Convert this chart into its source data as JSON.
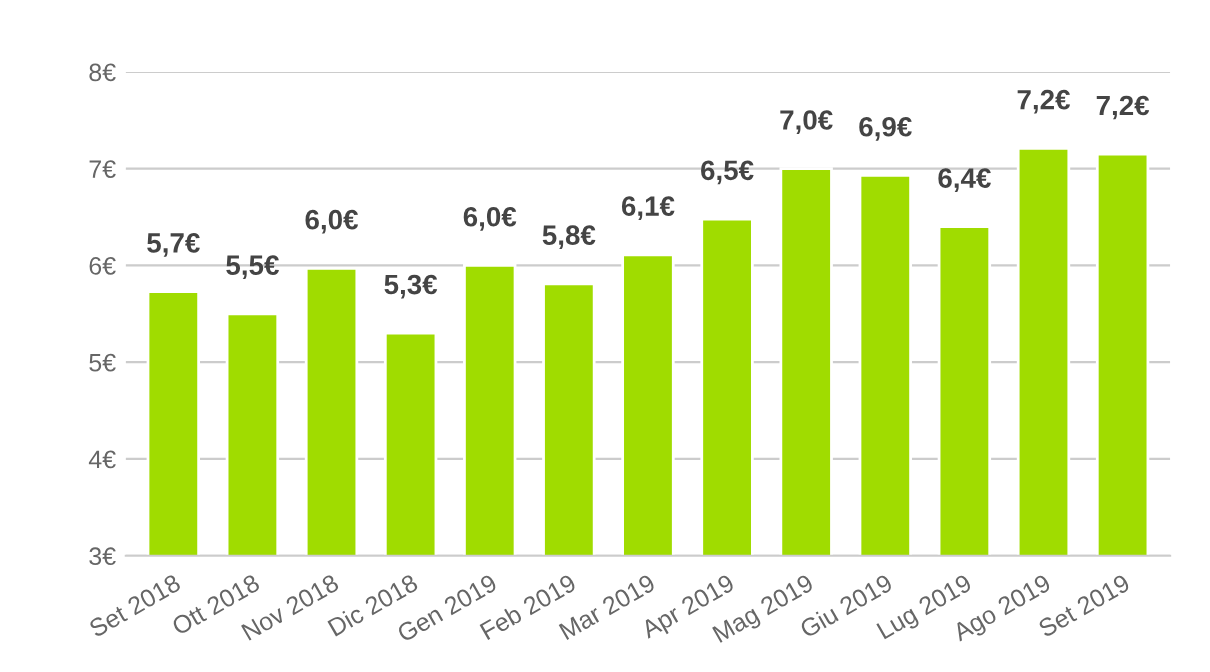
{
  "chart_data": {
    "type": "bar",
    "categories": [
      "Set 2018",
      "Ott 2018",
      "Nov 2018",
      "Dic 2018",
      "Gen 2019",
      "Feb 2019",
      "Mar 2019",
      "Apr 2019",
      "Mag 2019",
      "Giu 2019",
      "Lug 2019",
      "Ago 2019",
      "Set 2019"
    ],
    "values": [
      5.73,
      5.5,
      5.97,
      5.3,
      6.0,
      5.81,
      6.11,
      6.48,
      7.0,
      6.93,
      6.4,
      7.21,
      7.15
    ],
    "value_labels": [
      "5,7€",
      "5,5€",
      "6,0€",
      "5,3€",
      "6,0€",
      "5,8€",
      "6,1€",
      "6,5€",
      "7,0€",
      "6,9€",
      "6,4€",
      "7,2€",
      "7,2€"
    ],
    "color": "#a0dc00",
    "ylim": [
      3,
      8
    ],
    "yticks": [
      {
        "value": 3,
        "label": "3€"
      },
      {
        "value": 4,
        "label": "4€"
      },
      {
        "value": 5,
        "label": "5€"
      },
      {
        "value": 6,
        "label": "6€"
      },
      {
        "value": 7,
        "label": "7€"
      },
      {
        "value": 8,
        "label": "8€"
      }
    ],
    "grid": "y"
  }
}
